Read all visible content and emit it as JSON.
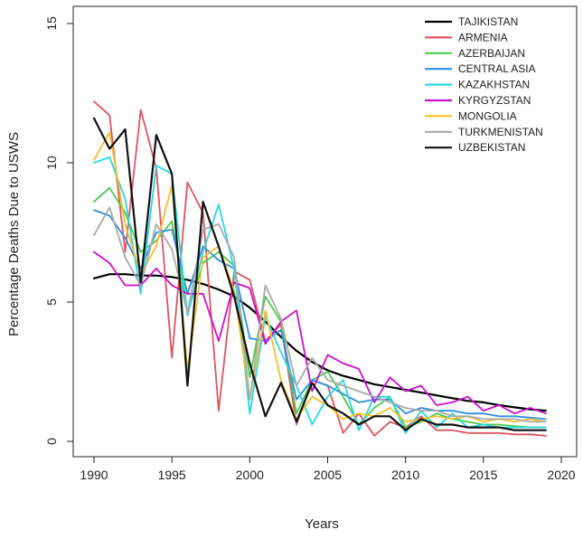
{
  "chart_data": {
    "type": "line",
    "xlabel": "Years",
    "ylabel": "Percentage Deaths Due to USWS",
    "xlim": [
      1990,
      2020
    ],
    "ylim": [
      0,
      15
    ],
    "x_ticks": [
      1990,
      1995,
      2000,
      2005,
      2010,
      2015,
      2020
    ],
    "y_ticks": [
      0,
      5,
      10,
      15
    ],
    "legend_position": "top-right",
    "x": [
      1990,
      1991,
      1992,
      1993,
      1994,
      1995,
      1996,
      1997,
      1998,
      1999,
      2000,
      2001,
      2002,
      2003,
      2004,
      2005,
      2006,
      2007,
      2008,
      2009,
      2010,
      2011,
      2012,
      2013,
      2014,
      2015,
      2016,
      2017,
      2018,
      2019
    ],
    "series": [
      {
        "name": "TAJIKISTAN",
        "color": "#000000",
        "width": 2.2,
        "values": [
          5.85,
          6.0,
          6.0,
          5.95,
          5.95,
          5.9,
          5.8,
          5.65,
          5.45,
          5.2,
          4.8,
          4.3,
          3.75,
          3.25,
          2.85,
          2.55,
          2.35,
          2.2,
          2.05,
          1.95,
          1.85,
          1.75,
          1.65,
          1.55,
          1.45,
          1.4,
          1.3,
          1.22,
          1.15,
          1.1
        ]
      },
      {
        "name": "ARMENIA",
        "color": "#df5461",
        "width": 1.8,
        "values": [
          12.2,
          11.7,
          6.8,
          11.9,
          9.8,
          3.0,
          9.3,
          8.2,
          1.1,
          6.1,
          5.8,
          3.6,
          4.2,
          0.6,
          2.2,
          2.0,
          0.3,
          1.0,
          0.2,
          0.7,
          0.5,
          0.9,
          0.4,
          0.4,
          0.3,
          0.3,
          0.3,
          0.25,
          0.25,
          0.2
        ]
      },
      {
        "name": "AZERBAIJAN",
        "color": "#4dc94d",
        "width": 1.8,
        "values": [
          8.6,
          9.1,
          8.2,
          6.8,
          7.2,
          7.9,
          4.6,
          6.4,
          6.8,
          6.3,
          2.3,
          5.2,
          4.3,
          1.0,
          2.2,
          2.5,
          1.6,
          0.6,
          1.2,
          1.6,
          0.5,
          0.7,
          1.0,
          0.8,
          0.7,
          0.6,
          0.6,
          0.55,
          0.5,
          0.5
        ]
      },
      {
        "name": "CENTRAL ASIA",
        "color": "#2f8fe0",
        "width": 1.8,
        "values": [
          8.3,
          8.1,
          7.3,
          6.2,
          7.5,
          7.6,
          5.3,
          7.0,
          6.5,
          6.2,
          3.7,
          3.6,
          4.0,
          1.5,
          2.2,
          2.0,
          1.7,
          1.4,
          1.5,
          1.5,
          1.0,
          1.2,
          1.1,
          1.1,
          1.0,
          1.0,
          0.9,
          0.9,
          0.85,
          0.8
        ]
      },
      {
        "name": "KAZAKHSTAN",
        "color": "#27d8e6",
        "width": 1.8,
        "values": [
          10.0,
          10.2,
          8.7,
          5.3,
          9.9,
          9.6,
          4.5,
          6.8,
          8.5,
          6.2,
          1.0,
          4.5,
          3.2,
          2.0,
          0.6,
          1.6,
          2.2,
          0.4,
          1.6,
          1.6,
          0.3,
          1.1,
          0.5,
          1.0,
          0.5,
          0.6,
          0.5,
          0.5,
          0.5,
          0.5
        ]
      },
      {
        "name": "KYRGYZSTAN",
        "color": "#cc11cc",
        "width": 1.8,
        "values": [
          6.8,
          6.4,
          5.6,
          5.6,
          6.2,
          5.6,
          5.3,
          5.3,
          3.6,
          5.7,
          5.5,
          3.5,
          4.3,
          4.7,
          1.8,
          3.1,
          2.8,
          2.6,
          1.4,
          2.3,
          1.8,
          2.0,
          1.3,
          1.4,
          1.6,
          1.1,
          1.3,
          1.0,
          1.2,
          1.0
        ]
      },
      {
        "name": "MONGOLIA",
        "color": "#f2c12e",
        "width": 1.8,
        "values": [
          10.1,
          11.1,
          7.8,
          6.0,
          7.0,
          9.2,
          2.5,
          6.6,
          7.0,
          5.4,
          1.5,
          4.7,
          2.2,
          0.8,
          1.6,
          1.3,
          0.8,
          1.0,
          0.9,
          1.2,
          0.7,
          0.8,
          0.9,
          0.8,
          0.9,
          0.7,
          0.8,
          0.7,
          0.8,
          0.7
        ]
      },
      {
        "name": "TURKMENISTAN",
        "color": "#a9a9a9",
        "width": 1.8,
        "values": [
          7.4,
          8.4,
          6.6,
          5.6,
          7.8,
          6.9,
          4.6,
          7.6,
          7.8,
          6.6,
          1.5,
          5.6,
          4.4,
          2.0,
          3.0,
          2.2,
          2.0,
          1.8,
          1.6,
          1.4,
          1.2,
          1.1,
          1.1,
          0.9,
          0.9,
          0.8,
          0.8,
          0.8,
          0.7,
          0.7
        ]
      },
      {
        "name": "UZBEKISTAN",
        "color": "#111111",
        "width": 2.2,
        "values": [
          11.6,
          10.5,
          11.2,
          5.7,
          11.0,
          9.6,
          2.0,
          8.6,
          7.0,
          5.2,
          2.8,
          0.9,
          2.1,
          0.7,
          2.1,
          1.3,
          1.0,
          0.6,
          0.9,
          0.9,
          0.4,
          0.8,
          0.6,
          0.6,
          0.5,
          0.5,
          0.5,
          0.4,
          0.4,
          0.4
        ]
      }
    ]
  }
}
